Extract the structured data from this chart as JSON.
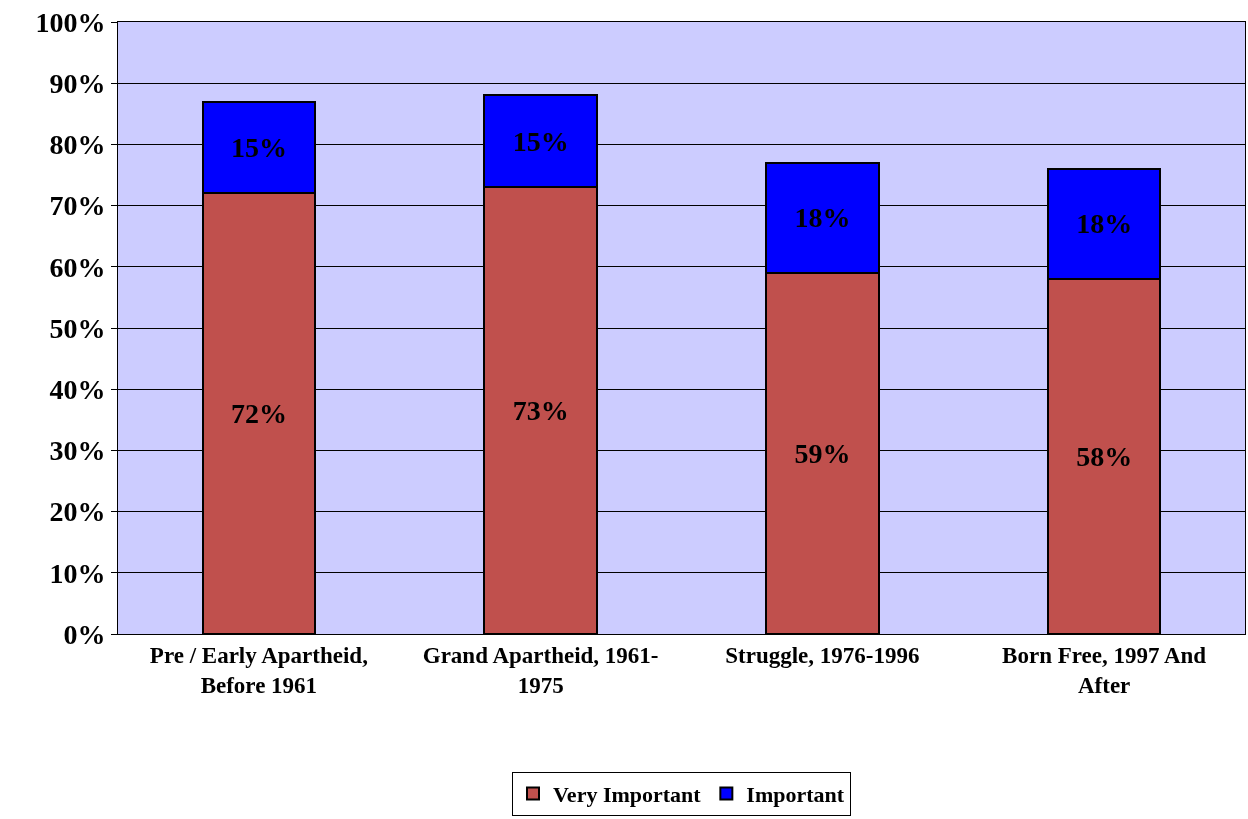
{
  "chart_data": {
    "type": "bar",
    "stacked": true,
    "categories": [
      "Pre / Early Apartheid, Before 1961",
      "Grand Apartheid, 1961-1975",
      "Struggle, 1976-1996",
      "Born Free, 1997 And After"
    ],
    "series": [
      {
        "name": "Very Important",
        "color": "#c0504d",
        "values": [
          72,
          73,
          59,
          58
        ],
        "value_labels": [
          "72%",
          "73%",
          "59%",
          "58%"
        ]
      },
      {
        "name": "Important",
        "color": "#0000ff",
        "values": [
          15,
          15,
          18,
          18
        ],
        "value_labels": [
          "15%",
          "15%",
          "18%",
          "18%"
        ]
      }
    ],
    "ylim": [
      0,
      100
    ],
    "yticks": [
      {
        "value": 0,
        "label": "0%"
      },
      {
        "value": 10,
        "label": "10%"
      },
      {
        "value": 20,
        "label": "20%"
      },
      {
        "value": 30,
        "label": "30%"
      },
      {
        "value": 40,
        "label": "40%"
      },
      {
        "value": 50,
        "label": "50%"
      },
      {
        "value": 60,
        "label": "60%"
      },
      {
        "value": 70,
        "label": "70%"
      },
      {
        "value": 80,
        "label": "80%"
      },
      {
        "value": 90,
        "label": "90%"
      },
      {
        "value": 100,
        "label": "100%"
      }
    ],
    "grid": "y",
    "legend": "bottom"
  }
}
